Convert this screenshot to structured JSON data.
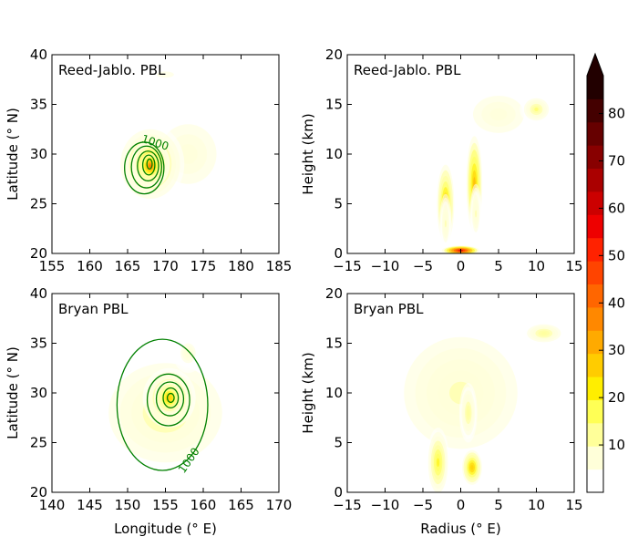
{
  "figure": {
    "colorbar": {
      "ticks": [
        "10",
        "20",
        "30",
        "40",
        "50",
        "60",
        "70",
        "80"
      ],
      "tick_values": [
        10,
        20,
        30,
        40,
        50,
        60,
        70,
        80
      ],
      "min": 0,
      "max": 88,
      "colors": [
        "#ffffff",
        "#ffffd9",
        "#ffff99",
        "#ffff55",
        "#ffee00",
        "#ffcc00",
        "#ffaa00",
        "#ff8800",
        "#ff6600",
        "#ff4400",
        "#ff2200",
        "#ee0000",
        "#cc0000",
        "#aa0000",
        "#880000",
        "#660000",
        "#440000",
        "#220000"
      ],
      "extend": "max"
    },
    "contour_color": "#008000"
  },
  "chart_data": [
    {
      "type": "heatmap",
      "panel": "top-left",
      "label": "Reed-Jablo. PBL",
      "xlabel": "",
      "ylabel": "Latitude (° N)",
      "xlim": [
        155,
        185
      ],
      "ylim": [
        20,
        40
      ],
      "xticks": [
        "155",
        "160",
        "165",
        "170",
        "175",
        "180",
        "185"
      ],
      "xtick_values": [
        155,
        160,
        165,
        170,
        175,
        180,
        185
      ],
      "yticks": [
        "20",
        "25",
        "30",
        "35",
        "40"
      ],
      "ytick_values": [
        20,
        25,
        30,
        35,
        40
      ],
      "blobs": [
        {
          "x": 173,
          "y": 30,
          "sx": 10,
          "sy": 8,
          "v": 7
        },
        {
          "x": 170,
          "y": 38,
          "sx": 9,
          "sy": 2.5,
          "v": 5
        },
        {
          "x": 168,
          "y": 29,
          "sx": 4.5,
          "sy": 4,
          "v": 20
        },
        {
          "x": 168,
          "y": 29,
          "sx": 2.6,
          "sy": 2.4,
          "v": 32
        },
        {
          "x": 168,
          "y": 28.8,
          "sx": 1.4,
          "sy": 1.3,
          "v": 40
        }
      ],
      "contours": [
        {
          "cx": 167.2,
          "cy": 28.6,
          "rx": 2.6,
          "ry": 2.6
        },
        {
          "cx": 167.5,
          "cy": 28.7,
          "rx": 2.0,
          "ry": 2.1
        },
        {
          "cx": 167.7,
          "cy": 28.8,
          "rx": 1.4,
          "ry": 1.5
        },
        {
          "cx": 167.8,
          "cy": 28.9,
          "rx": 0.8,
          "ry": 1.0
        },
        {
          "cx": 167.9,
          "cy": 29.0,
          "rx": 0.35,
          "ry": 0.5
        }
      ],
      "contour_label": {
        "text": "1000",
        "x": 168.5,
        "y": 30.8,
        "rotate": 18
      }
    },
    {
      "type": "heatmap",
      "panel": "top-right",
      "label": "Reed-Jablo. PBL",
      "xlabel": "",
      "ylabel": "Height (km)",
      "xlim": [
        -15,
        15
      ],
      "ylim": [
        0,
        20
      ],
      "xticks": [
        "−15",
        "−10",
        "−5",
        "0",
        "5",
        "10",
        "15"
      ],
      "xtick_values": [
        -15,
        -10,
        -5,
        0,
        5,
        10,
        15
      ],
      "yticks": [
        "0",
        "5",
        "10",
        "15",
        "20"
      ],
      "ytick_values": [
        0,
        5,
        10,
        15,
        20
      ],
      "blobs": [
        {
          "x": 5,
          "y": 14,
          "sx": 9,
          "sy": 5,
          "v": 7
        },
        {
          "x": 10,
          "y": 14.5,
          "sx": 2.2,
          "sy": 1.5,
          "v": 15
        },
        {
          "x": -2,
          "y": 5,
          "sx": 1.3,
          "sy": 4.5,
          "v": 28
        },
        {
          "x": -2,
          "y": 3,
          "sx": 0.8,
          "sy": 3,
          "v": 10
        },
        {
          "x": 1.8,
          "y": 7,
          "sx": 1.2,
          "sy": 5.5,
          "v": 30
        },
        {
          "x": 2,
          "y": 4,
          "sx": 0.8,
          "sy": 3,
          "v": 10
        },
        {
          "x": 0,
          "y": 0.3,
          "sx": 2.5,
          "sy": 0.5,
          "v": 60
        }
      ],
      "contours": []
    },
    {
      "type": "heatmap",
      "panel": "bottom-left",
      "label": "Bryan PBL",
      "xlabel": "Longitude (° E)",
      "ylabel": "Latitude (° N)",
      "xlim": [
        140,
        170
      ],
      "ylim": [
        20,
        40
      ],
      "xticks": [
        "140",
        "145",
        "150",
        "155",
        "160",
        "165",
        "170"
      ],
      "xtick_values": [
        140,
        145,
        150,
        155,
        160,
        165,
        170
      ],
      "yticks": [
        "20",
        "25",
        "30",
        "35",
        "40"
      ],
      "ytick_values": [
        20,
        25,
        30,
        35,
        40
      ],
      "blobs": [
        {
          "x": 155,
          "y": 28,
          "sx": 12,
          "sy": 8,
          "v": 13
        },
        {
          "x": 155.5,
          "y": 29.5,
          "sx": 3.5,
          "sy": 3,
          "v": 25
        },
        {
          "x": 155.5,
          "y": 29.5,
          "sx": 2,
          "sy": 1.8,
          "v": 28
        },
        {
          "x": 158,
          "y": 34,
          "sx": 2,
          "sy": 2,
          "v": 8
        }
      ],
      "contours": [
        {
          "cx": 154.6,
          "cy": 28.8,
          "rx": 6.0,
          "ry": 6.6
        },
        {
          "cx": 155.4,
          "cy": 29.3,
          "rx": 2.8,
          "ry": 2.6
        },
        {
          "cx": 155.6,
          "cy": 29.4,
          "rx": 1.8,
          "ry": 1.7
        },
        {
          "cx": 155.7,
          "cy": 29.5,
          "rx": 1.0,
          "ry": 1.0
        },
        {
          "cx": 155.7,
          "cy": 29.5,
          "rx": 0.45,
          "ry": 0.45
        }
      ],
      "contour_label": {
        "text": "1000",
        "x": 158.5,
        "y": 23.0,
        "rotate": -55
      }
    },
    {
      "type": "heatmap",
      "panel": "bottom-right",
      "label": "Bryan PBL",
      "xlabel": "Radius (° E)",
      "ylabel": "Height (km)",
      "xlim": [
        -15,
        15
      ],
      "ylim": [
        0,
        20
      ],
      "xticks": [
        "−15",
        "−10",
        "−5",
        "0",
        "5",
        "10",
        "15"
      ],
      "xtick_values": [
        -15,
        -10,
        -5,
        0,
        5,
        10,
        15
      ],
      "yticks": [
        "0",
        "5",
        "10",
        "15",
        "20"
      ],
      "ytick_values": [
        0,
        5,
        10,
        15,
        20
      ],
      "blobs": [
        {
          "x": 0,
          "y": 10,
          "sx": 12,
          "sy": 9,
          "v": 10
        },
        {
          "x": 11,
          "y": 16,
          "sx": 3,
          "sy": 1.2,
          "v": 14
        },
        {
          "x": -3,
          "y": 3,
          "sx": 1.5,
          "sy": 3.5,
          "v": 20
        },
        {
          "x": 1.5,
          "y": 2.5,
          "sx": 1.5,
          "sy": 2,
          "v": 28
        },
        {
          "x": 1,
          "y": 8,
          "sx": 1.2,
          "sy": 3,
          "v": 14
        }
      ],
      "contours": []
    }
  ]
}
